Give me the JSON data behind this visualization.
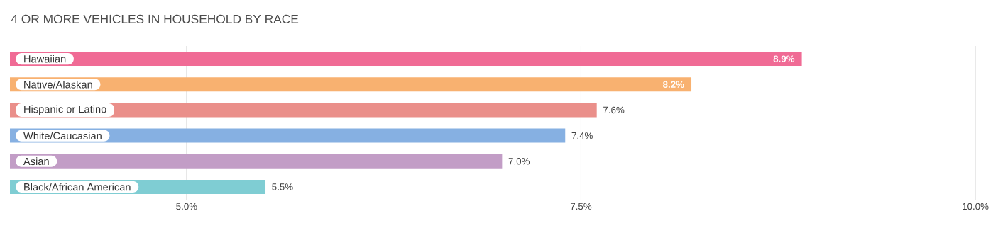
{
  "chart_data": {
    "type": "bar",
    "orientation": "horizontal",
    "title": "4 OR MORE VEHICLES IN HOUSEHOLD BY RACE",
    "categories": [
      "Hawaiian",
      "Native/Alaskan",
      "Hispanic or Latino",
      "White/Caucasian",
      "Asian",
      "Black/African American"
    ],
    "values": [
      8.9,
      8.2,
      7.6,
      7.4,
      7.0,
      5.5
    ],
    "value_labels": [
      "8.9%",
      "8.2%",
      "7.6%",
      "7.4%",
      "7.0%",
      "5.5%"
    ],
    "colors": [
      "#f06b95",
      "#f8b170",
      "#ea8f8a",
      "#86b0e2",
      "#c29dc6",
      "#7fcdd3"
    ],
    "xlim": [
      3.88,
      10
    ],
    "xticks": [
      {
        "value": 5,
        "label": "5.0%"
      },
      {
        "value": 7.5,
        "label": "7.5%"
      },
      {
        "value": 10,
        "label": "10.0%"
      }
    ],
    "grid": "x"
  }
}
